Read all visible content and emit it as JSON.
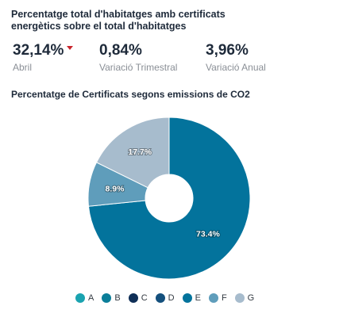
{
  "header": {
    "title": "Percentatge total d'habitatges amb certificats energètics sobre el total d'habitatges"
  },
  "kpis": [
    {
      "value": "32,14%",
      "label": "Abril",
      "trend": "down"
    },
    {
      "value": "0,84%",
      "label": "Variació Trimestral"
    },
    {
      "value": "3,96%",
      "label": "Variació Anual"
    }
  ],
  "colors": {
    "trend_down": "#c9252c"
  },
  "chart_data": {
    "type": "pie",
    "title": "Percentatge de Certificats segons emissions de CO2",
    "donut": true,
    "categories": [
      "A",
      "B",
      "C",
      "D",
      "E",
      "F",
      "G"
    ],
    "values": [
      0,
      0,
      0,
      0,
      73.4,
      8.9,
      17.7
    ],
    "data_labels": [
      "",
      "",
      "",
      "",
      "73.4%",
      "8.9%",
      "17.7%"
    ],
    "colors": [
      "#1aa3b0",
      "#0b7e99",
      "#0f2f57",
      "#14507d",
      "#03739c",
      "#5f9dbb",
      "#a7bccd"
    ],
    "legend": "bottom"
  }
}
